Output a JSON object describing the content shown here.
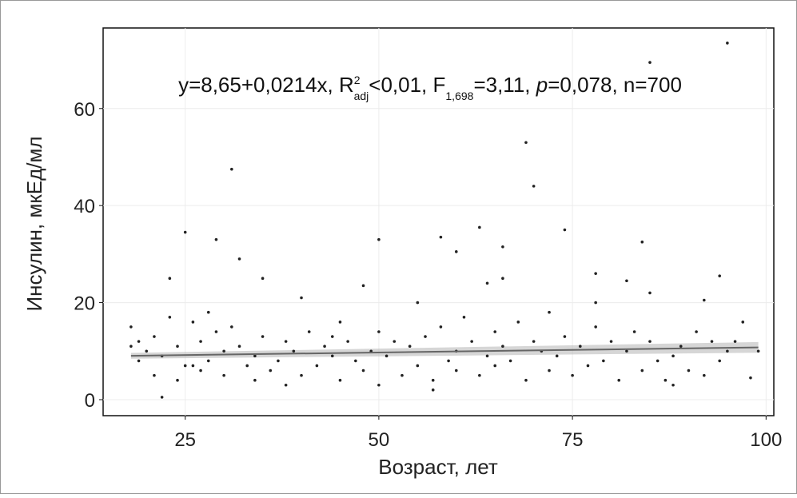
{
  "chart_data": {
    "type": "scatter",
    "annotation": {
      "t1": "y=8,65+0,0214x, R",
      "sup": "2",
      "sub1": "adj",
      "t2": "<0,01, F",
      "sub2": "1,698",
      "t3": "=3,11, ",
      "italic": "p",
      "t4": "=0,078, n=700"
    },
    "x_label": "Возраст, лет",
    "y_label": "Инсулин,  мкЕд/мл",
    "xlim": [
      14.4,
      101
    ],
    "ylim": [
      -3.3,
      76.6
    ],
    "xticks": [
      25,
      50,
      75,
      100
    ],
    "yticks": [
      0,
      20,
      40,
      60
    ],
    "grid": true,
    "color": "#222222",
    "x": [
      22,
      25,
      23,
      29,
      31,
      32,
      35,
      48,
      50,
      58,
      60,
      63,
      64,
      66,
      66,
      69,
      70,
      74,
      78,
      82,
      84,
      85,
      85,
      95,
      94,
      92,
      97,
      99,
      98,
      18,
      19,
      19,
      20,
      21,
      21,
      22,
      23,
      24,
      24,
      25,
      26,
      27,
      27,
      28,
      28,
      29,
      30,
      30,
      31,
      32,
      33,
      34,
      34,
      35,
      36,
      37,
      38,
      38,
      39,
      40,
      40,
      41,
      42,
      43,
      44,
      45,
      45,
      46,
      47,
      48,
      49,
      50,
      50,
      51,
      52,
      53,
      54,
      55,
      55,
      56,
      57,
      58,
      59,
      60,
      60,
      61,
      62,
      63,
      64,
      65,
      65,
      66,
      67,
      68,
      69,
      70,
      71,
      72,
      72,
      73,
      74,
      75,
      76,
      77,
      78,
      78,
      79,
      80,
      81,
      82,
      83,
      84,
      85,
      86,
      87,
      88,
      89,
      90,
      91,
      92,
      93,
      94,
      95,
      96,
      18,
      26,
      44,
      57,
      88
    ],
    "values": [
      0.5,
      34.5,
      25,
      33,
      47.5,
      29,
      25,
      23.5,
      33,
      33.5,
      30.5,
      35.5,
      24,
      31.5,
      25,
      53,
      44,
      35,
      26,
      24.5,
      32.5,
      22,
      69.5,
      73.5,
      25.5,
      20.5,
      16,
      10,
      4.5,
      15,
      12,
      8,
      10,
      5,
      13,
      9,
      17,
      4,
      11,
      7,
      16,
      12,
      6,
      18,
      8,
      14,
      10,
      5,
      15,
      11,
      7,
      9,
      4,
      13,
      6,
      8,
      3,
      12,
      10,
      21,
      5,
      14,
      7,
      11,
      9,
      16,
      4,
      12,
      8,
      6,
      10,
      3,
      14,
      9,
      12,
      5,
      11,
      20,
      7,
      13,
      4,
      15,
      8,
      10,
      6,
      17,
      12,
      5,
      9,
      14,
      7,
      11,
      8,
      16,
      4,
      12,
      10,
      6,
      18,
      9,
      13,
      5,
      11,
      7,
      20,
      15,
      8,
      12,
      4,
      10,
      14,
      6,
      12,
      8,
      4,
      9,
      11,
      6,
      14,
      5,
      12,
      8,
      10,
      12,
      11,
      7,
      13,
      2,
      3
    ],
    "fit": {
      "color": "#666666",
      "x": [
        18,
        99
      ],
      "values": [
        9.04,
        10.77
      ],
      "band": [
        0.6,
        1.1
      ]
    }
  }
}
